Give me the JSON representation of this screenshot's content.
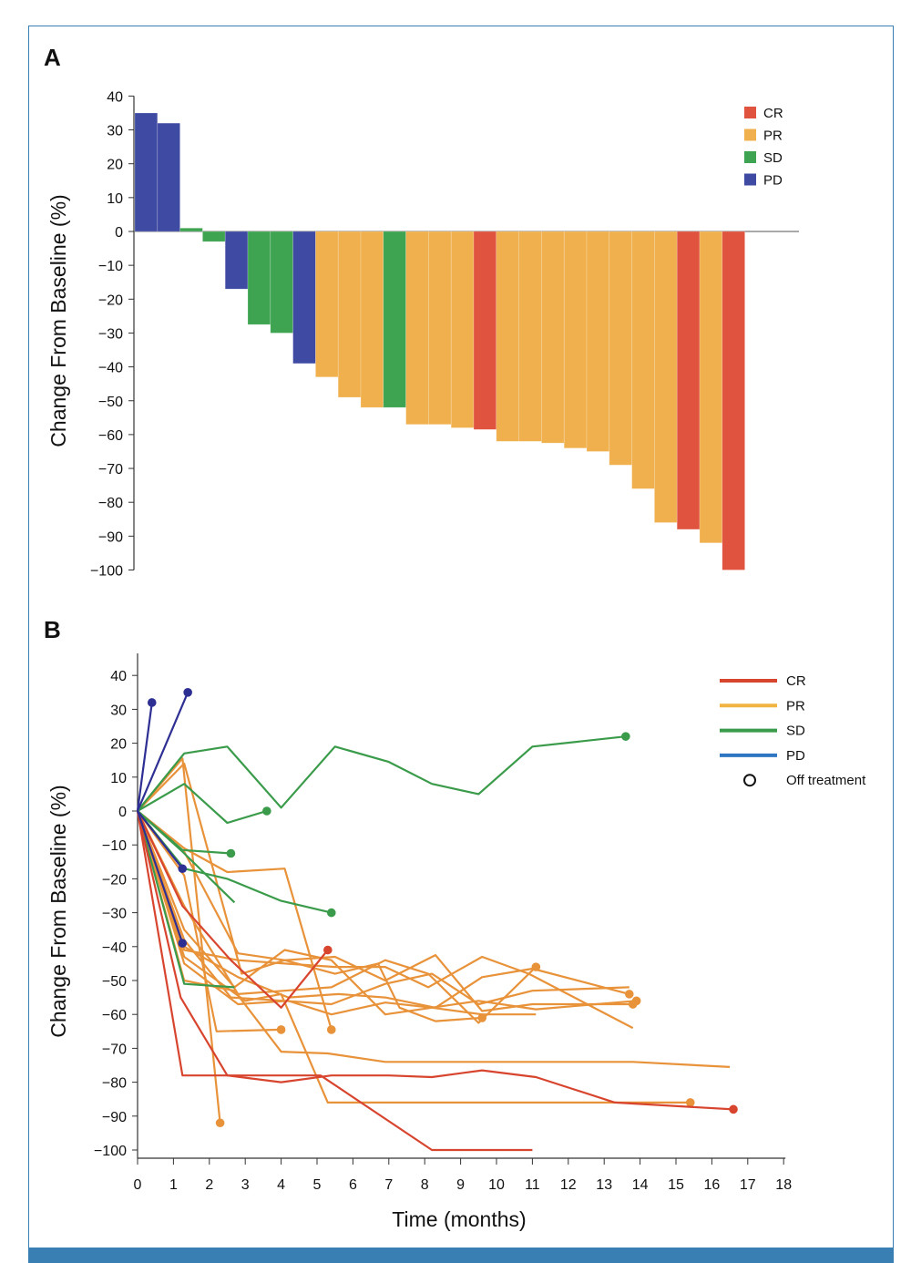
{
  "colors": {
    "CR": "#e0533f",
    "PR": "#f0b04e",
    "SD": "#3fa452",
    "PD": "#3f4aa3",
    "PD_legend": "#2e76c2",
    "line_PR": "#e8923a",
    "line_SD": "#3a9b4a",
    "line_PD": "#2e2f93",
    "line_CR": "#d8452f",
    "frame": "#3a7fb4"
  },
  "chart_data": [
    {
      "type": "bar",
      "panel_label": "A",
      "title": "",
      "xlabel": "",
      "ylabel": "Change From Baseline (%)",
      "ylim": [
        -100,
        40
      ],
      "y_ticks": [
        "40",
        "30",
        "20",
        "10",
        "0",
        "-10",
        "-20",
        "-30",
        "-40",
        "-50",
        "-60",
        "-70",
        "-80",
        "-90",
        "-100"
      ],
      "legend": {
        "placement": "top-right",
        "entries": [
          "CR",
          "PR",
          "SD",
          "PD"
        ]
      },
      "values": [
        35,
        32,
        1,
        -3,
        -17,
        -27.5,
        -30,
        -39,
        -43,
        -49,
        -52,
        -52,
        -57,
        -57,
        -58,
        -58.5,
        -62,
        -62,
        -62.5,
        -64,
        -65,
        -69,
        -76,
        -86,
        -88,
        -92,
        -100
      ],
      "categories_response": [
        "PD",
        "PD",
        "SD",
        "SD",
        "PD",
        "SD",
        "SD",
        "PD",
        "PR",
        "PR",
        "PR",
        "SD",
        "PR",
        "PR",
        "PR",
        "CR",
        "PR",
        "PR",
        "PR",
        "PR",
        "PR",
        "PR",
        "PR",
        "PR",
        "CR",
        "PR",
        "CR"
      ]
    },
    {
      "type": "line",
      "panel_label": "B",
      "title": "",
      "xlabel": "Time (months)",
      "ylabel": "Change From Baseline (%)",
      "xlim": [
        0,
        18
      ],
      "ylim": [
        -100,
        40
      ],
      "x_ticks": [
        "0",
        "1",
        "2",
        "3",
        "4",
        "5",
        "6",
        "7",
        "8",
        "9",
        "10",
        "11",
        "12",
        "13",
        "14",
        "15",
        "16",
        "17",
        "18"
      ],
      "y_ticks": [
        "40",
        "30",
        "20",
        "10",
        "0",
        "-10",
        "-20",
        "-30",
        "-40",
        "-50",
        "-60",
        "-70",
        "-80",
        "-90",
        "-100"
      ],
      "legend": {
        "placement": "top-right",
        "entries": [
          "CR",
          "PR",
          "SD",
          "PD",
          "Off treatment"
        ]
      },
      "series": [
        {
          "group": "PD",
          "points": [
            [
              0,
              0
            ],
            [
              0.4,
              32
            ]
          ],
          "off": true
        },
        {
          "group": "PD",
          "points": [
            [
              0,
              0
            ],
            [
              1.4,
              35
            ]
          ],
          "off": true
        },
        {
          "group": "PD",
          "points": [
            [
              0,
              0
            ],
            [
              1.25,
              -17
            ]
          ],
          "off": true
        },
        {
          "group": "PD",
          "points": [
            [
              0,
              0
            ],
            [
              1.25,
              -39
            ]
          ],
          "off": true
        },
        {
          "group": "SD",
          "points": [
            [
              0,
              0
            ],
            [
              1.3,
              17
            ],
            [
              2.5,
              19
            ],
            [
              4,
              1
            ],
            [
              5.5,
              19
            ],
            [
              7,
              14.5
            ],
            [
              8.2,
              8
            ],
            [
              9.5,
              5
            ],
            [
              11,
              19
            ],
            [
              13.6,
              22
            ]
          ],
          "off": true
        },
        {
          "group": "SD",
          "points": [
            [
              0,
              0
            ],
            [
              1.3,
              8
            ],
            [
              2.5,
              -3.5
            ],
            [
              3.6,
              0
            ]
          ],
          "off": true
        },
        {
          "group": "SD",
          "points": [
            [
              0,
              0
            ],
            [
              1.25,
              -11.5
            ],
            [
              2.6,
              -12.5
            ]
          ],
          "off": true
        },
        {
          "group": "SD",
          "points": [
            [
              0,
              0
            ],
            [
              1.25,
              -12
            ],
            [
              2.7,
              -27
            ]
          ],
          "off": false
        },
        {
          "group": "SD",
          "points": [
            [
              0,
              0
            ],
            [
              1.3,
              -51
            ],
            [
              2.7,
              -52
            ]
          ],
          "off": false
        },
        {
          "group": "SD",
          "points": [
            [
              0,
              0
            ],
            [
              1.3,
              -17
            ],
            [
              2.5,
              -20
            ],
            [
              4,
              -26.5
            ],
            [
              5.4,
              -30
            ]
          ],
          "off": true
        },
        {
          "group": "PR",
          "points": [
            [
              0,
              0
            ],
            [
              1.25,
              15.5
            ],
            [
              2.3,
              -92
            ]
          ],
          "off": true
        },
        {
          "group": "PR",
          "points": [
            [
              0,
              0
            ],
            [
              1.3,
              14
            ],
            [
              2.9,
              -48
            ],
            [
              4.1,
              -44
            ],
            [
              5.5,
              -48
            ],
            [
              6.7,
              -45
            ],
            [
              7.3,
              -58
            ],
            [
              8.3,
              -62
            ],
            [
              9.6,
              -61
            ]
          ],
          "off": true
        },
        {
          "group": "PR",
          "points": [
            [
              0,
              0
            ],
            [
              1.3,
              -11
            ],
            [
              2.5,
              -18
            ],
            [
              4.1,
              -17
            ],
            [
              5.4,
              -64.5
            ]
          ],
          "off": true
        },
        {
          "group": "PR",
          "points": [
            [
              0,
              0
            ],
            [
              1.3,
              -19
            ],
            [
              2.2,
              -65
            ],
            [
              4,
              -64.5
            ]
          ],
          "off": true
        },
        {
          "group": "PR",
          "points": [
            [
              0,
              0
            ],
            [
              1.3,
              -12
            ],
            [
              2.8,
              -42
            ],
            [
              4.1,
              -44
            ],
            [
              5.5,
              -43
            ],
            [
              6.9,
              -50
            ],
            [
              8.3,
              -42.5
            ],
            [
              9.6,
              -59
            ],
            [
              11,
              -57
            ],
            [
              13.8,
              -57
            ]
          ],
          "off": true
        },
        {
          "group": "PR",
          "points": [
            [
              0,
              0
            ],
            [
              1.3,
              -28
            ],
            [
              2.8,
              -54
            ],
            [
              4.1,
              -53
            ],
            [
              5.4,
              -52
            ],
            [
              6.9,
              -44
            ],
            [
              8.1,
              -48
            ],
            [
              9.5,
              -62.5
            ],
            [
              11.1,
              -46
            ]
          ],
          "off": true
        },
        {
          "group": "PR",
          "points": [
            [
              0,
              0
            ],
            [
              1.3,
              -35
            ],
            [
              2.7,
              -52
            ],
            [
              4.1,
              -41
            ],
            [
              5.4,
              -44
            ],
            [
              6.9,
              -60
            ],
            [
              8.2,
              -58
            ],
            [
              9.6,
              -60
            ],
            [
              11.1,
              -60
            ]
          ],
          "off": false
        },
        {
          "group": "PR",
          "points": [
            [
              0,
              0
            ],
            [
              1.3,
              -38
            ],
            [
              2.6,
              -55
            ],
            [
              4.1,
              -56
            ],
            [
              5.4,
              -57
            ],
            [
              6.9,
              -51
            ],
            [
              8.2,
              -48
            ],
            [
              9.5,
              -57
            ],
            [
              11,
              -53
            ],
            [
              13.7,
              -52
            ]
          ],
          "off": false
        },
        {
          "group": "PR",
          "points": [
            [
              0,
              0
            ],
            [
              1.3,
              -50
            ],
            [
              2.7,
              -53
            ],
            [
              4.0,
              -71
            ],
            [
              5.3,
              -71.5
            ],
            [
              6.9,
              -74
            ],
            [
              13.8,
              -74
            ],
            [
              16.5,
              -75.5
            ]
          ],
          "off": false
        },
        {
          "group": "PR",
          "points": [
            [
              0,
              0
            ],
            [
              1.3,
              -40
            ],
            [
              2.8,
              -49
            ],
            [
              4.2,
              -55
            ],
            [
              5.6,
              -54
            ],
            [
              6.9,
              -55
            ],
            [
              8.3,
              -58
            ],
            [
              9.6,
              -49
            ],
            [
              11,
              -46.5
            ],
            [
              13.7,
              -54
            ]
          ],
          "off": true
        },
        {
          "group": "PR",
          "points": [
            [
              0,
              0
            ],
            [
              1.3,
              -41
            ],
            [
              2.8,
              -44
            ],
            [
              4.1,
              -45
            ],
            [
              5.5,
              -46
            ],
            [
              6.9,
              -46
            ],
            [
              8.1,
              -52
            ],
            [
              9.6,
              -43
            ],
            [
              10.9,
              -48
            ],
            [
              13.8,
              -64
            ]
          ],
          "off": false
        },
        {
          "group": "PR",
          "points": [
            [
              0,
              0
            ],
            [
              1.3,
              -45
            ],
            [
              2.8,
              -57
            ],
            [
              4.2,
              -56
            ],
            [
              5.4,
              -60
            ],
            [
              6.9,
              -56.5
            ],
            [
              8.2,
              -58
            ],
            [
              9.5,
              -56
            ],
            [
              11.1,
              -58.5
            ],
            [
              13.9,
              -56
            ]
          ],
          "off": true
        },
        {
          "group": "PR",
          "points": [
            [
              0,
              0
            ],
            [
              1.3,
              -43
            ],
            [
              3,
              -56
            ],
            [
              4,
              -54
            ],
            [
              5.3,
              -86
            ],
            [
              7,
              -86
            ],
            [
              8.3,
              -86
            ],
            [
              9.6,
              -86
            ],
            [
              11,
              -86
            ],
            [
              13.3,
              -86
            ],
            [
              15.4,
              -86
            ]
          ],
          "off": true
        },
        {
          "group": "CR",
          "points": [
            [
              0,
              0
            ],
            [
              1.2,
              -55
            ],
            [
              2.5,
              -78
            ],
            [
              4.0,
              -80
            ],
            [
              5.4,
              -78
            ],
            [
              7,
              -78
            ],
            [
              8.2,
              -78.5
            ],
            [
              9.6,
              -76.5
            ],
            [
              11.1,
              -78.5
            ],
            [
              13.3,
              -86
            ],
            [
              16.6,
              -88
            ]
          ],
          "off": true
        },
        {
          "group": "CR",
          "points": [
            [
              0,
              0
            ],
            [
              1.25,
              -78
            ],
            [
              5.1,
              -78
            ],
            [
              8.2,
              -100
            ],
            [
              11,
              -100
            ]
          ],
          "off": false
        },
        {
          "group": "CR",
          "points": [
            [
              0,
              0
            ],
            [
              1.25,
              -28
            ],
            [
              2.6,
              -44
            ],
            [
              4,
              -58
            ],
            [
              5.3,
              -41
            ]
          ],
          "off": true
        }
      ]
    }
  ]
}
